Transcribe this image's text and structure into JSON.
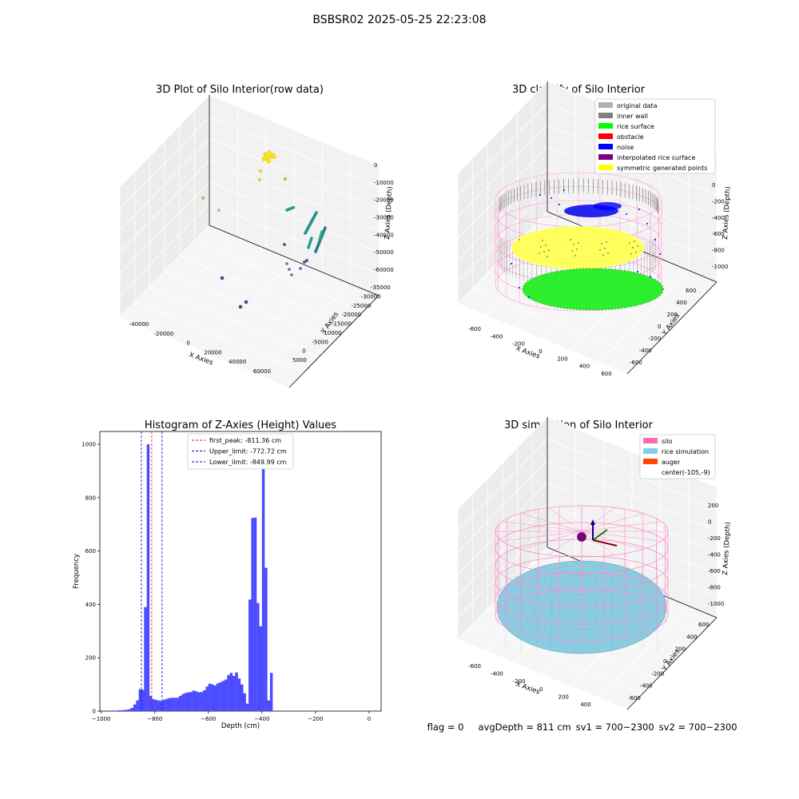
{
  "suptitle": "BSBSR02 2025-05-25 22:23:08",
  "panels": {
    "raw": {
      "title": "3D Plot of Silo Interior(row data)",
      "xlabel": "X Axies",
      "ylabel": "Y Axies",
      "zlabel": "Z Axies (Depth)",
      "xticks": [
        "-40000",
        "-20000",
        "0",
        "20000",
        "40000",
        "60000"
      ],
      "yticks": [
        "5000",
        "0",
        "-5000",
        "-10000",
        "-15000",
        "-20000",
        "-25000",
        "-30000",
        "-35000"
      ],
      "zticks": [
        "0",
        "-10000",
        "-20000",
        "-30000",
        "-40000",
        "-50000",
        "-60000"
      ]
    },
    "classify": {
      "title": "3D classify of Silo Interior",
      "xlabel": "X Axies",
      "ylabel": "Y Axies",
      "zlabel": "Z Axies (Depth)",
      "xticks": [
        "-600",
        "-400",
        "-200",
        "0",
        "200",
        "400",
        "600"
      ],
      "yticks": [
        "600",
        "400",
        "200",
        "0",
        "-200",
        "-400",
        "-600"
      ],
      "zticks": [
        "0",
        "-200",
        "-400",
        "-600",
        "-800",
        "-1000"
      ],
      "legend": [
        {
          "label": "original data",
          "color": "#b0b0b0"
        },
        {
          "label": "inner wall",
          "color": "#808080"
        },
        {
          "label": "rice surface",
          "color": "#00ff00"
        },
        {
          "label": "obstacle",
          "color": "#ff0000"
        },
        {
          "label": "noise",
          "color": "#0000ff"
        },
        {
          "label": "interpolated rice surface",
          "color": "#800080"
        },
        {
          "label": "symmetric generated points",
          "color": "#ffff00"
        }
      ]
    },
    "simulation": {
      "title": "3D simulation of Silo Interior",
      "xlabel": "X Axies",
      "ylabel": "Y Axies",
      "zlabel": "Z Axies (Depth)",
      "xticks": [
        "-600",
        "-400",
        "-200",
        "0",
        "200",
        "400"
      ],
      "yticks": [
        "600",
        "400",
        "200",
        "0",
        "-200",
        "-400",
        "-600"
      ],
      "zticks": [
        "200",
        "0",
        "-200",
        "-400",
        "-600",
        "-800",
        "-1000"
      ],
      "legend": [
        {
          "label": "silo",
          "color": "#ff69b4"
        },
        {
          "label": "rice simulation",
          "color": "#87ceeb"
        },
        {
          "label": "auger",
          "color": "#ff4500"
        },
        {
          "label": "center(-105,-9)",
          "color": "#ffffff"
        }
      ],
      "colors": {
        "silo_wire": "#ff8ac8",
        "rice": "#8ccbe0",
        "center": "#800080"
      }
    }
  },
  "chart_data": {
    "type": "bar",
    "title": "Histogram of Z-Axies (Height) Values",
    "xlabel": "Depth (cm)",
    "ylabel": "Frequency",
    "xlim": [
      -1005,
      45
    ],
    "ylim": [
      0,
      1048
    ],
    "bin_width": 10,
    "xticks": [
      -1000,
      -800,
      -600,
      -400,
      -200,
      0
    ],
    "yticks": [
      0,
      200,
      400,
      600,
      800,
      1000
    ],
    "bar_color": "#4c4cff",
    "bins": [
      [
        -970,
        2
      ],
      [
        -960,
        2
      ],
      [
        -950,
        2
      ],
      [
        -940,
        3
      ],
      [
        -930,
        3
      ],
      [
        -920,
        4
      ],
      [
        -910,
        5
      ],
      [
        -900,
        7
      ],
      [
        -890,
        12
      ],
      [
        -880,
        25
      ],
      [
        -870,
        40
      ],
      [
        -860,
        82
      ],
      [
        -850,
        80
      ],
      [
        -840,
        390
      ],
      [
        -830,
        1000
      ],
      [
        -820,
        57
      ],
      [
        -810,
        45
      ],
      [
        -800,
        42
      ],
      [
        -790,
        40
      ],
      [
        -780,
        38
      ],
      [
        -770,
        43
      ],
      [
        -760,
        46
      ],
      [
        -750,
        49
      ],
      [
        -740,
        50
      ],
      [
        -730,
        50
      ],
      [
        -720,
        50
      ],
      [
        -710,
        57
      ],
      [
        -700,
        64
      ],
      [
        -690,
        68
      ],
      [
        -680,
        70
      ],
      [
        -670,
        72
      ],
      [
        -660,
        77
      ],
      [
        -650,
        74
      ],
      [
        -640,
        70
      ],
      [
        -630,
        72
      ],
      [
        -620,
        78
      ],
      [
        -610,
        92
      ],
      [
        -600,
        103
      ],
      [
        -590,
        100
      ],
      [
        -580,
        96
      ],
      [
        -570,
        104
      ],
      [
        -560,
        108
      ],
      [
        -550,
        113
      ],
      [
        -540,
        118
      ],
      [
        -530,
        135
      ],
      [
        -520,
        143
      ],
      [
        -510,
        132
      ],
      [
        -500,
        145
      ],
      [
        -490,
        122
      ],
      [
        -480,
        100
      ],
      [
        -470,
        67
      ],
      [
        -460,
        28
      ],
      [
        -450,
        418
      ],
      [
        -440,
        724
      ],
      [
        -430,
        725
      ],
      [
        -420,
        405
      ],
      [
        -410,
        318
      ],
      [
        -400,
        940
      ],
      [
        -390,
        537
      ],
      [
        -380,
        40
      ],
      [
        -370,
        143
      ]
    ],
    "vlines": [
      {
        "label": "first_peak: -811.36 cm",
        "x": -811.36,
        "color": "#ff0000"
      },
      {
        "label": "Upper_limit: -772.72 cm",
        "x": -772.72,
        "color": "#0000cc"
      },
      {
        "label": "Lower_limit: -849.99 cm",
        "x": -849.99,
        "color": "#0000cc"
      }
    ]
  },
  "status": {
    "flag": "flag = 0",
    "avgdepth": "avgDepth = 811 cm",
    "sv1": "sv1 = 700~2300",
    "sv2": "sv2 = 700~2300"
  }
}
